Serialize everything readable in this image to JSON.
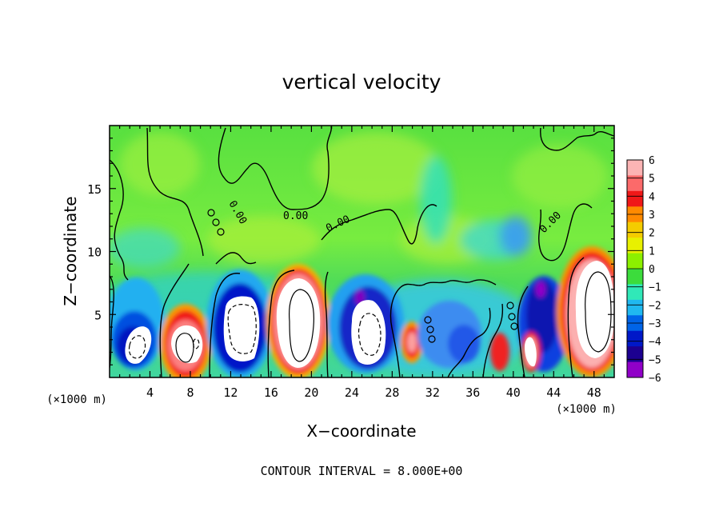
{
  "chart_data": {
    "type": "heatmap",
    "title": "vertical velocity",
    "xlabel": "X−coordinate",
    "ylabel": "Z−coordinate",
    "x_unit_left": "(×1000 m)",
    "x_unit_right": "(×1000 m)",
    "xlim": [
      0,
      50
    ],
    "ylim": [
      0,
      20
    ],
    "x_ticks": [
      4,
      8,
      12,
      16,
      20,
      24,
      28,
      32,
      36,
      40,
      44,
      48
    ],
    "x_tick_labels": [
      "4",
      "8",
      "12",
      "16",
      "20",
      "24",
      "28",
      "32",
      "36",
      "40",
      "44",
      "48"
    ],
    "y_ticks": [
      5,
      10,
      15
    ],
    "y_tick_labels": [
      "5",
      "10",
      "15"
    ],
    "contour_interval_text": "CONTOUR INTERVAL = 8.000E+00",
    "contour_labels": [
      "0.00",
      "0.00",
      "0.00",
      "0.00"
    ],
    "colorbar": {
      "ticks": [
        6,
        5,
        4,
        3,
        2,
        1,
        0,
        -1,
        -2,
        -3,
        -4,
        -5,
        -6
      ],
      "tick_labels": [
        "6",
        "5",
        "4",
        "3",
        "2",
        "1",
        "0",
        "−1",
        "−2",
        "−3",
        "−4",
        "−5",
        "−6"
      ],
      "colors": [
        "#fcb4b4",
        "#fc6a6a",
        "#f01818",
        "#ff8a00",
        "#f4cc00",
        "#e8f000",
        "#8cf000",
        "#3cdc3c",
        "#30e8b8",
        "#20b8f0",
        "#0064e8",
        "#0018c8",
        "#1c0090",
        "#9000c8"
      ]
    },
    "cells": [
      {
        "x": 3,
        "z": 2.5,
        "w": -4
      },
      {
        "x": 7.5,
        "z": 2.5,
        "w": 7
      },
      {
        "x": 11.5,
        "z": 4.5,
        "w": -4
      },
      {
        "x": 18.5,
        "z": 4.5,
        "w": 12
      },
      {
        "x": 25.5,
        "z": 4.5,
        "w": -4
      },
      {
        "x": 30,
        "z": 3,
        "w": 5
      },
      {
        "x": 34,
        "z": 4,
        "w": -3
      },
      {
        "x": 38.5,
        "z": 2,
        "w": 4
      },
      {
        "x": 40.5,
        "z": 3,
        "w": 6
      },
      {
        "x": 42,
        "z": 6,
        "w": -6
      },
      {
        "x": 48,
        "z": 5.5,
        "w": 12
      }
    ]
  }
}
